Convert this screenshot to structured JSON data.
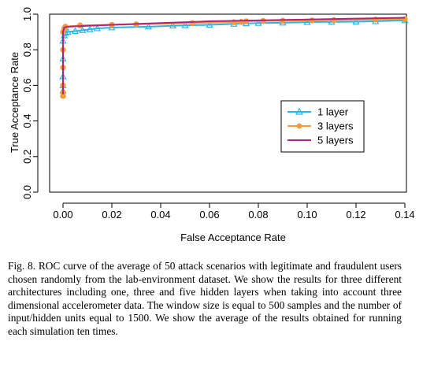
{
  "chart_data": {
    "type": "line",
    "title": "",
    "xlabel": "False Acceptance Rate",
    "ylabel": "True Acceptance Rate",
    "xlim": [
      0,
      0.14
    ],
    "ylim": [
      0,
      1.0
    ],
    "x_ticks": [
      0.0,
      0.02,
      0.04,
      0.06,
      0.08,
      0.1,
      0.12,
      0.14
    ],
    "x_tick_labels": [
      "0.00",
      "0.02",
      "0.04",
      "0.06",
      "0.08",
      "0.10",
      "0.12",
      "0.14"
    ],
    "y_ticks": [
      0.0,
      0.2,
      0.4,
      0.6,
      0.8,
      1.0
    ],
    "y_tick_labels": [
      "0.0",
      "0.2",
      "0.4",
      "0.6",
      "0.8",
      "1.0"
    ],
    "grid": false,
    "legend_position": "center-right",
    "series": [
      {
        "name": "1 layer",
        "color": "#29b6e6",
        "marker": "triangle",
        "x": [
          0.0,
          0.0,
          0.0,
          0.0,
          0.0,
          0.0005,
          0.001,
          0.002,
          0.005,
          0.008,
          0.011,
          0.014,
          0.02,
          0.035,
          0.045,
          0.05,
          0.06,
          0.07,
          0.075,
          0.08,
          0.09,
          0.1,
          0.11,
          0.12,
          0.128,
          0.14
        ],
        "y": [
          0.57,
          0.6,
          0.65,
          0.75,
          0.85,
          0.88,
          0.895,
          0.9,
          0.905,
          0.91,
          0.915,
          0.92,
          0.925,
          0.93,
          0.935,
          0.937,
          0.94,
          0.945,
          0.948,
          0.95,
          0.952,
          0.955,
          0.957,
          0.958,
          0.96,
          0.965
        ]
      },
      {
        "name": "3 layers",
        "color": "#f39a3c",
        "marker": "circle",
        "x": [
          0.0,
          0.0,
          0.0,
          0.0,
          0.0,
          0.0,
          0.0005,
          0.001,
          0.007,
          0.02,
          0.03,
          0.053,
          0.07,
          0.073,
          0.075,
          0.082,
          0.09,
          0.102,
          0.111,
          0.128,
          0.14
        ],
        "y": [
          0.54,
          0.56,
          0.6,
          0.7,
          0.8,
          0.9,
          0.92,
          0.93,
          0.937,
          0.94,
          0.943,
          0.95,
          0.955,
          0.957,
          0.96,
          0.962,
          0.963,
          0.965,
          0.967,
          0.97,
          0.972
        ]
      },
      {
        "name": "5 layers",
        "color": "#b0247a",
        "marker": "none",
        "x": [
          0.0,
          0.0,
          0.0,
          0.0005,
          0.002,
          0.01,
          0.02,
          0.03,
          0.04,
          0.06,
          0.08,
          0.1,
          0.12,
          0.14
        ],
        "y": [
          0.55,
          0.7,
          0.9,
          0.925,
          0.93,
          0.935,
          0.94,
          0.945,
          0.95,
          0.96,
          0.965,
          0.97,
          0.975,
          0.98
        ]
      }
    ]
  },
  "caption": "Fig. 8.  ROC curve of the average of 50 attack scenarios with legitimate and fraudulent users chosen randomly from the lab-environment dataset. We show the results for three different architectures including one, three and five hidden layers when taking into account three dimensional accelerometer data. The window size is equal to 500 samples and the number of input/hidden units equal to 1500. We show the average of the results obtained for running each simulation ten times."
}
